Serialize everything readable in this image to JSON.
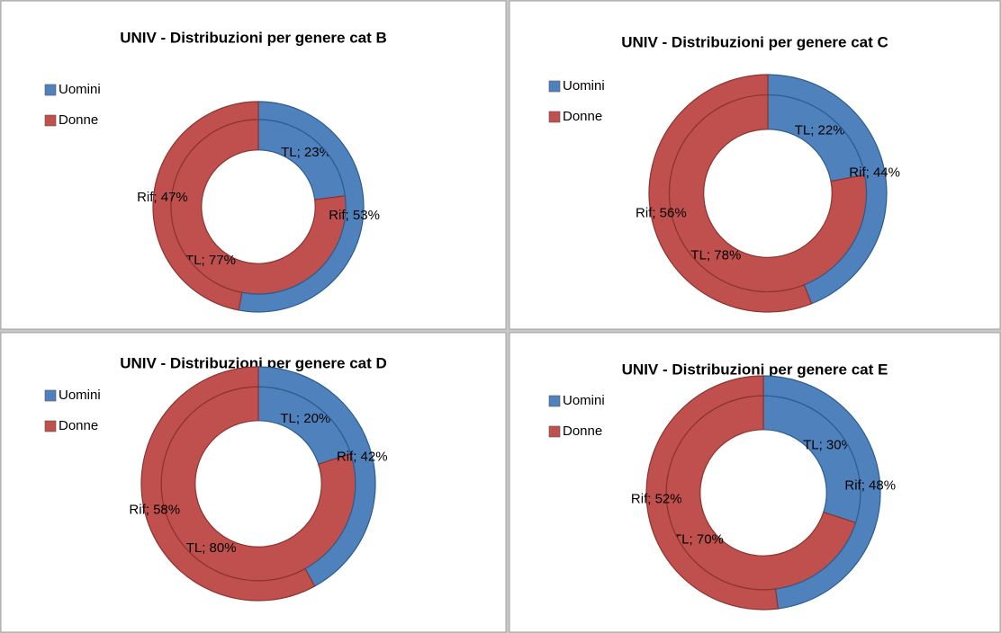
{
  "chart_data": [
    {
      "type": "doughnut",
      "title": "UNIV - Distribuzioni per genere cat B",
      "series": [
        {
          "name": "Uomini",
          "color": "#4f81bd"
        },
        {
          "name": "Donne",
          "color": "#c0504d"
        }
      ],
      "rings": [
        {
          "values": [
            23,
            77
          ],
          "value_labels": [
            "TL; 23%",
            "TL; 77%"
          ]
        },
        {
          "values": [
            53,
            47
          ],
          "value_labels": [
            "Rif; 53%",
            "Rif; 47%"
          ]
        }
      ]
    },
    {
      "type": "doughnut",
      "title": "UNIV - Distribuzioni per genere cat C",
      "series": [
        {
          "name": "Uomini",
          "color": "#4f81bd"
        },
        {
          "name": "Donne",
          "color": "#c0504d"
        }
      ],
      "rings": [
        {
          "values": [
            22,
            78
          ],
          "value_labels": [
            "TL; 22%",
            "TL; 78%"
          ]
        },
        {
          "values": [
            44,
            56
          ],
          "value_labels": [
            "Rif; 44%",
            "Rif; 56%"
          ]
        }
      ]
    },
    {
      "type": "doughnut",
      "title": "UNIV - Distribuzioni per genere cat D",
      "series": [
        {
          "name": "Uomini",
          "color": "#4f81bd"
        },
        {
          "name": "Donne",
          "color": "#c0504d"
        }
      ],
      "rings": [
        {
          "values": [
            20,
            80
          ],
          "value_labels": [
            "TL; 20%",
            "TL; 80%"
          ]
        },
        {
          "values": [
            42,
            58
          ],
          "value_labels": [
            "Rif; 42%",
            "Rif; 58%"
          ]
        }
      ]
    },
    {
      "type": "doughnut",
      "title": "UNIV - Distribuzioni per genere cat E",
      "series": [
        {
          "name": "Uomini",
          "color": "#4f81bd"
        },
        {
          "name": "Donne",
          "color": "#c0504d"
        }
      ],
      "rings": [
        {
          "values": [
            30,
            70
          ],
          "value_labels": [
            "TL; 30%",
            "TL; 70%"
          ]
        },
        {
          "values": [
            48,
            52
          ],
          "value_labels": [
            "Rif; 48%",
            "Rif; 52%"
          ]
        }
      ]
    }
  ]
}
